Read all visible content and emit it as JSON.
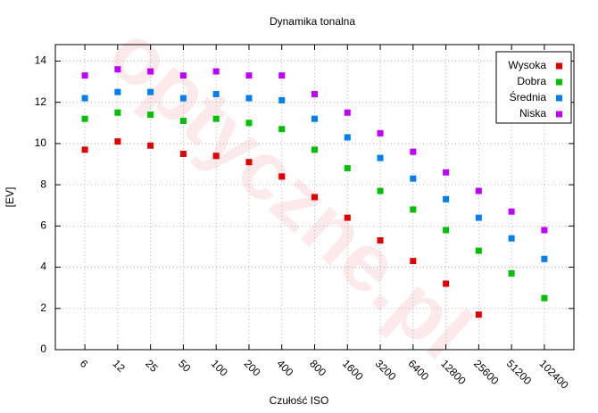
{
  "chart_data": {
    "type": "scatter",
    "title": "Dynamika tonalna",
    "xlabel": "Czułość ISO",
    "ylabel": "[EV]",
    "watermark": "optyczne.pl",
    "categories": [
      "6",
      "12",
      "25",
      "50",
      "100",
      "200",
      "400",
      "800",
      "1600",
      "3200",
      "6400",
      "12800",
      "25600",
      "51200",
      "102400"
    ],
    "series": [
      {
        "name": "Wysoka",
        "color": "#e00000",
        "values": [
          9.7,
          10.1,
          9.9,
          9.5,
          9.4,
          9.1,
          8.4,
          7.4,
          6.4,
          5.3,
          4.3,
          3.2,
          1.7,
          null,
          null
        ]
      },
      {
        "name": "Dobra",
        "color": "#00c000",
        "values": [
          11.2,
          11.5,
          11.4,
          11.1,
          11.2,
          11.0,
          10.7,
          9.7,
          8.8,
          7.7,
          6.8,
          5.8,
          4.8,
          3.7,
          2.5
        ]
      },
      {
        "name": "Średnia",
        "color": "#0080f0",
        "values": [
          12.2,
          12.5,
          12.5,
          12.2,
          12.4,
          12.2,
          12.1,
          11.2,
          10.3,
          9.3,
          8.3,
          7.3,
          6.4,
          5.4,
          4.4
        ]
      },
      {
        "name": "Niska",
        "color": "#c000ff",
        "values": [
          13.3,
          13.6,
          13.5,
          13.3,
          13.5,
          13.3,
          13.3,
          12.4,
          11.5,
          10.5,
          9.6,
          8.6,
          7.7,
          6.7,
          5.8
        ]
      }
    ],
    "ylim": [
      0,
      14.8
    ],
    "yticks": [
      0,
      2,
      4,
      6,
      8,
      10,
      12,
      14
    ],
    "grid": true,
    "legend": "top-right"
  }
}
